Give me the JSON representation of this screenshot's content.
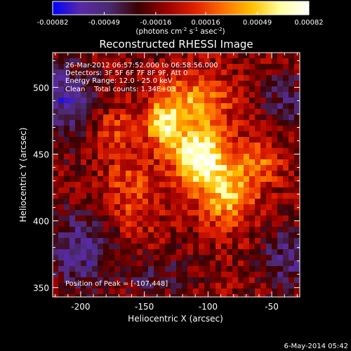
{
  "chart_data": {
    "type": "heatmap",
    "title": "Reconstructed RHESSI Image",
    "xlabel": "Heliocentric X (arcsec)",
    "ylabel": "Heliocentric Y (arcsec)",
    "xlim": [
      -222,
      -28
    ],
    "ylim": [
      343,
      526
    ],
    "x_ticks": [
      {
        "value": -200,
        "label": "-200"
      },
      {
        "value": -150,
        "label": "-150"
      },
      {
        "value": -100,
        "label": "-100"
      },
      {
        "value": -50,
        "label": "-50"
      }
    ],
    "y_ticks": [
      {
        "value": 350,
        "label": "350"
      },
      {
        "value": 400,
        "label": "400"
      },
      {
        "value": 450,
        "label": "450"
      },
      {
        "value": 500,
        "label": "500"
      }
    ],
    "colorbar": {
      "min": -0.00082,
      "max": 0.00082,
      "ticks": [
        {
          "value": -0.00082,
          "label": "-0.00082"
        },
        {
          "value": -0.00049,
          "label": "-0.00049"
        },
        {
          "value": -0.00016,
          "label": "-0.00016"
        },
        {
          "value": 0.00016,
          "label": "0.00016"
        },
        {
          "value": 0.00049,
          "label": "0.00049"
        },
        {
          "value": 0.00082,
          "label": "0.00082"
        }
      ],
      "unit_base": "(photons cm",
      "unit_exp1": "-2",
      "unit_mid1": " s",
      "unit_exp2": "-1",
      "unit_mid2": " asec",
      "unit_exp3": "-2",
      "unit_end": ")"
    },
    "annotations": {
      "time_range": "26-Mar-2012 06:57:52.000 to 06:58:56.000",
      "detectors": "Detectors: 3F 5F 6F 7F 8F 9F, Att 0",
      "energy_range": "Energy Range: 12.0 - 25.0 keV",
      "method": "Clean    Total counts: 1.34E+03",
      "peak_position": "Position of Peak = [-107,448]"
    },
    "peak": {
      "x": -107,
      "y": 448
    },
    "colors": {
      "background": "#000000",
      "axes": "#ffffff",
      "colormap": [
        "#0000ff",
        "#5a2aa6",
        "#4b2a6e",
        "#3a0000",
        "#9a0000",
        "#e02000",
        "#ff7000",
        "#ffc000",
        "#ffffa0",
        "#ffffff"
      ]
    }
  },
  "footer": {
    "date": "6-May-2014 05:42"
  }
}
